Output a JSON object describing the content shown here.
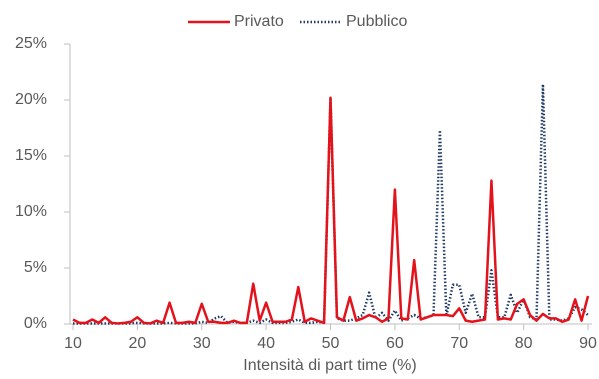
{
  "chart_data": {
    "type": "line",
    "x": [
      10,
      11,
      12,
      13,
      14,
      15,
      16,
      17,
      18,
      19,
      20,
      21,
      22,
      23,
      24,
      25,
      26,
      27,
      28,
      29,
      30,
      31,
      32,
      33,
      34,
      35,
      36,
      37,
      38,
      39,
      40,
      41,
      42,
      43,
      44,
      45,
      46,
      47,
      48,
      49,
      50,
      51,
      52,
      53,
      54,
      55,
      56,
      57,
      58,
      59,
      60,
      61,
      62,
      63,
      64,
      65,
      66,
      67,
      68,
      69,
      70,
      71,
      72,
      73,
      74,
      75,
      76,
      77,
      78,
      79,
      80,
      81,
      82,
      83,
      84,
      85,
      86,
      87,
      88,
      89,
      90
    ],
    "series": [
      {
        "name": "Privato",
        "color": "#e3121b",
        "style": "solid",
        "values": [
          0.4,
          0.1,
          0.1,
          0.4,
          0.1,
          0.6,
          0.1,
          0.05,
          0.1,
          0.2,
          0.6,
          0.1,
          0.05,
          0.3,
          0.1,
          1.9,
          0.1,
          0.1,
          0.2,
          0.1,
          1.8,
          0.2,
          0.2,
          0.1,
          0.1,
          0.3,
          0.1,
          0.1,
          3.6,
          0.3,
          1.9,
          0.2,
          0.2,
          0.2,
          0.4,
          3.3,
          0.2,
          0.5,
          0.3,
          0.1,
          20.2,
          0.6,
          0.3,
          2.4,
          0.3,
          0.5,
          0.8,
          0.6,
          0.2,
          0.5,
          12.0,
          0.5,
          0.4,
          5.7,
          0.4,
          0.6,
          0.8,
          0.8,
          0.8,
          0.7,
          1.4,
          0.3,
          0.2,
          0.3,
          0.4,
          12.8,
          0.4,
          0.5,
          0.4,
          1.8,
          2.2,
          0.8,
          0.3,
          0.9,
          0.5,
          0.5,
          0.2,
          0.4,
          2.2,
          0.3,
          2.5
        ]
      },
      {
        "name": "Pubblico",
        "color": "#1f3864",
        "style": "dotted",
        "values": [
          0.05,
          0.05,
          0.05,
          0.05,
          0.05,
          0.05,
          0.05,
          0.05,
          0.05,
          0.05,
          0.1,
          0.05,
          0.05,
          0.05,
          0.05,
          0.1,
          0.05,
          0.05,
          0.05,
          0.05,
          0.2,
          0.1,
          0.5,
          0.7,
          0.1,
          0.2,
          0.1,
          0.1,
          0.3,
          0.1,
          0.4,
          0.1,
          0.1,
          0.1,
          0.2,
          0.4,
          0.1,
          0.1,
          0.2,
          0.1,
          20.2,
          0.5,
          0.3,
          0.3,
          0.5,
          0.8,
          2.8,
          0.5,
          1.0,
          0.3,
          1.2,
          0.3,
          0.5,
          0.8,
          0.5,
          0.6,
          0.8,
          17.3,
          0.7,
          3.5,
          3.5,
          1.0,
          2.7,
          0.6,
          0.6,
          4.8,
          0.6,
          0.6,
          2.6,
          1.0,
          2.2,
          0.6,
          0.4,
          21.4,
          0.4,
          0.4,
          0.3,
          0.5,
          1.5,
          1.3,
          0.8
        ]
      }
    ],
    "xlabel": "Intensità di part time (%)",
    "xlim": [
      10,
      90
    ],
    "xticks": [
      10,
      20,
      30,
      40,
      50,
      60,
      70,
      80,
      90
    ],
    "ylim": [
      0,
      25
    ],
    "yticks": [
      {
        "value": 0,
        "label": "0%"
      },
      {
        "value": 5,
        "label": "5%"
      },
      {
        "value": 10,
        "label": "10%"
      },
      {
        "value": 15,
        "label": "15%"
      },
      {
        "value": 20,
        "label": "20%"
      },
      {
        "value": 25,
        "label": "25%"
      }
    ],
    "legend": "top"
  }
}
